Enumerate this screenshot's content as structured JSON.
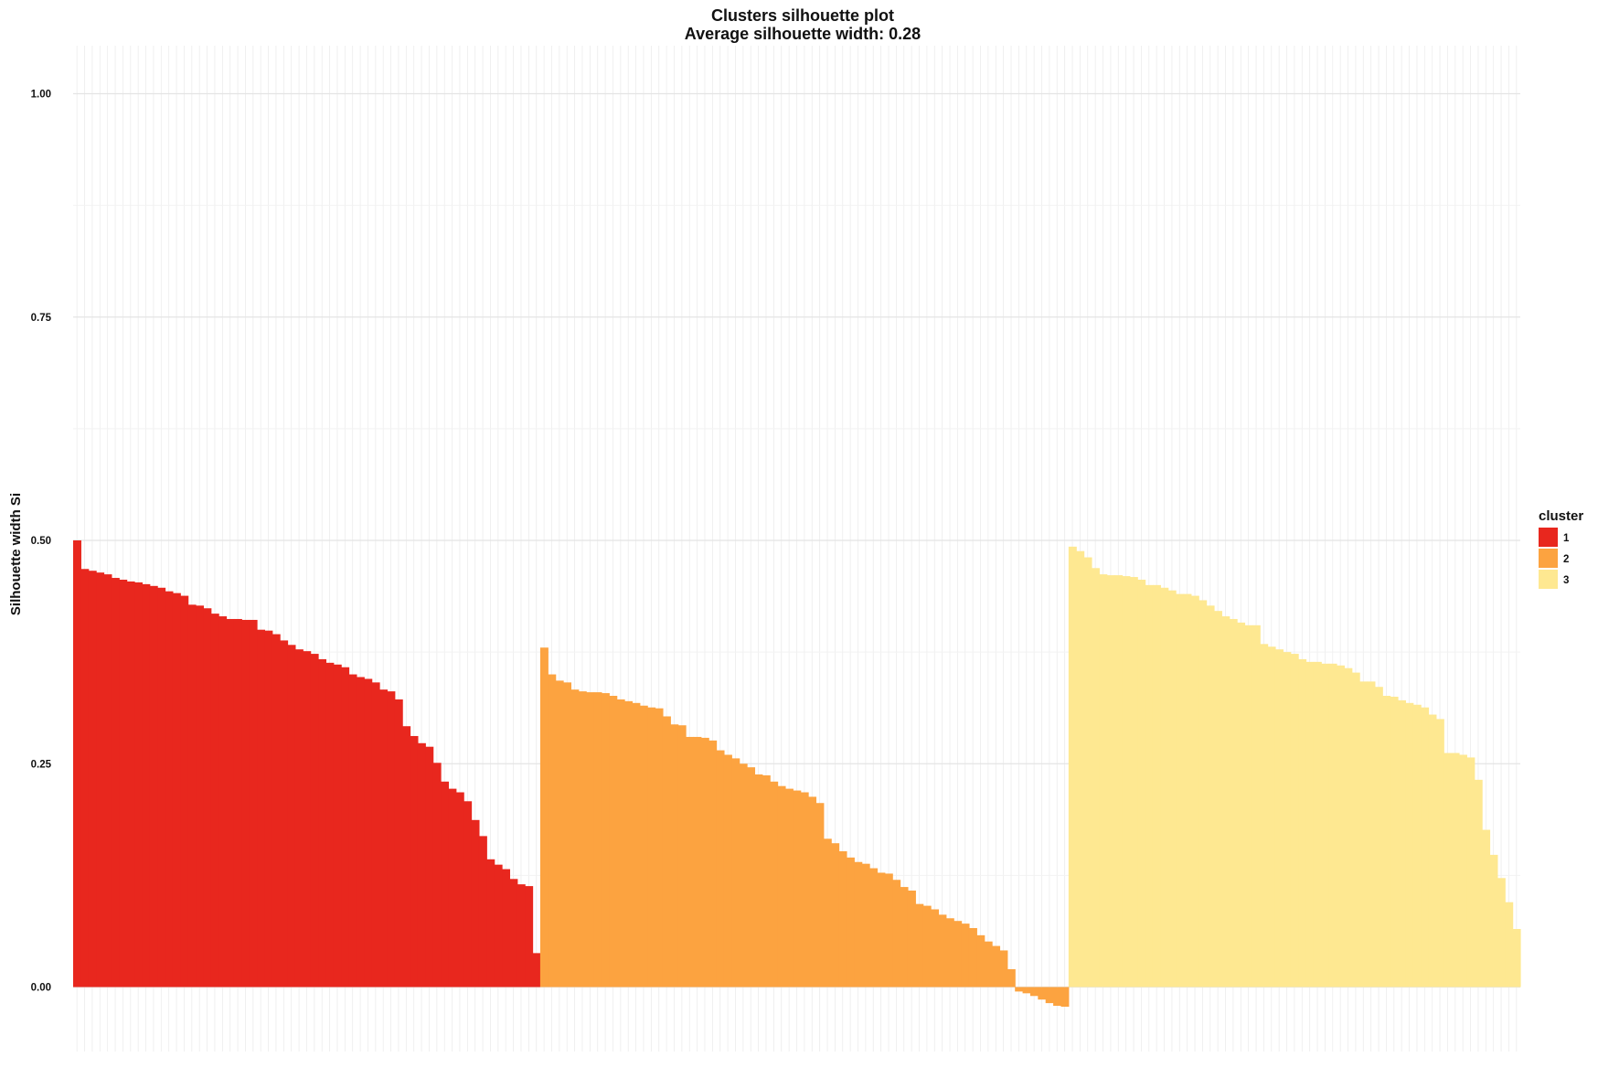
{
  "chart_data": {
    "type": "bar",
    "title": "Clusters silhouette plot",
    "subtitle": "Average silhouette width: 0.28",
    "xlabel": "",
    "ylabel": "Silhouette width Si",
    "ylim": [
      -0.07,
      1.05
    ],
    "yticks": [
      0.0,
      0.25,
      0.5,
      0.75,
      1.0
    ],
    "ytick_labels": [
      "0.00",
      "0.25",
      "0.50",
      "0.75",
      "1.00"
    ],
    "grid": true,
    "legend": {
      "title": "cluster",
      "placement": "right"
    },
    "series": [
      {
        "name": "1",
        "color": "#e8271e",
        "values": [
          0.5,
          0.468,
          0.466,
          0.464,
          0.462,
          0.458,
          0.456,
          0.454,
          0.453,
          0.451,
          0.449,
          0.447,
          0.443,
          0.441,
          0.438,
          0.428,
          0.427,
          0.424,
          0.418,
          0.415,
          0.412,
          0.412,
          0.411,
          0.411,
          0.4,
          0.399,
          0.395,
          0.388,
          0.383,
          0.378,
          0.376,
          0.373,
          0.367,
          0.363,
          0.361,
          0.358,
          0.35,
          0.347,
          0.345,
          0.341,
          0.333,
          0.331,
          0.322,
          0.292,
          0.281,
          0.273,
          0.269,
          0.251,
          0.23,
          0.222,
          0.218,
          0.208,
          0.187,
          0.169,
          0.143,
          0.137,
          0.132,
          0.121,
          0.115,
          0.113,
          0.038
        ]
      },
      {
        "name": "2",
        "color": "#fca340",
        "values": [
          0.38,
          0.35,
          0.343,
          0.341,
          0.333,
          0.331,
          0.33,
          0.33,
          0.329,
          0.326,
          0.322,
          0.32,
          0.318,
          0.315,
          0.313,
          0.312,
          0.303,
          0.294,
          0.293,
          0.28,
          0.28,
          0.279,
          0.276,
          0.265,
          0.26,
          0.256,
          0.25,
          0.246,
          0.238,
          0.237,
          0.23,
          0.225,
          0.222,
          0.22,
          0.218,
          0.213,
          0.206,
          0.166,
          0.161,
          0.152,
          0.145,
          0.14,
          0.138,
          0.133,
          0.128,
          0.127,
          0.12,
          0.112,
          0.108,
          0.093,
          0.091,
          0.087,
          0.081,
          0.077,
          0.074,
          0.071,
          0.066,
          0.058,
          0.051,
          0.046,
          0.041,
          0.02,
          -0.005,
          -0.007,
          -0.01,
          -0.014,
          -0.018,
          -0.021,
          -0.022
        ]
      },
      {
        "name": "3",
        "color": "#fee891",
        "values": [
          0.493,
          0.488,
          0.481,
          0.469,
          0.462,
          0.461,
          0.461,
          0.46,
          0.459,
          0.456,
          0.45,
          0.45,
          0.447,
          0.444,
          0.44,
          0.44,
          0.438,
          0.433,
          0.427,
          0.421,
          0.415,
          0.412,
          0.408,
          0.405,
          0.405,
          0.384,
          0.381,
          0.378,
          0.375,
          0.373,
          0.367,
          0.364,
          0.364,
          0.362,
          0.362,
          0.36,
          0.357,
          0.352,
          0.342,
          0.342,
          0.336,
          0.326,
          0.325,
          0.321,
          0.318,
          0.316,
          0.313,
          0.305,
          0.3,
          0.262,
          0.262,
          0.26,
          0.257,
          0.232,
          0.176,
          0.148,
          0.122,
          0.095,
          0.065
        ]
      }
    ]
  }
}
